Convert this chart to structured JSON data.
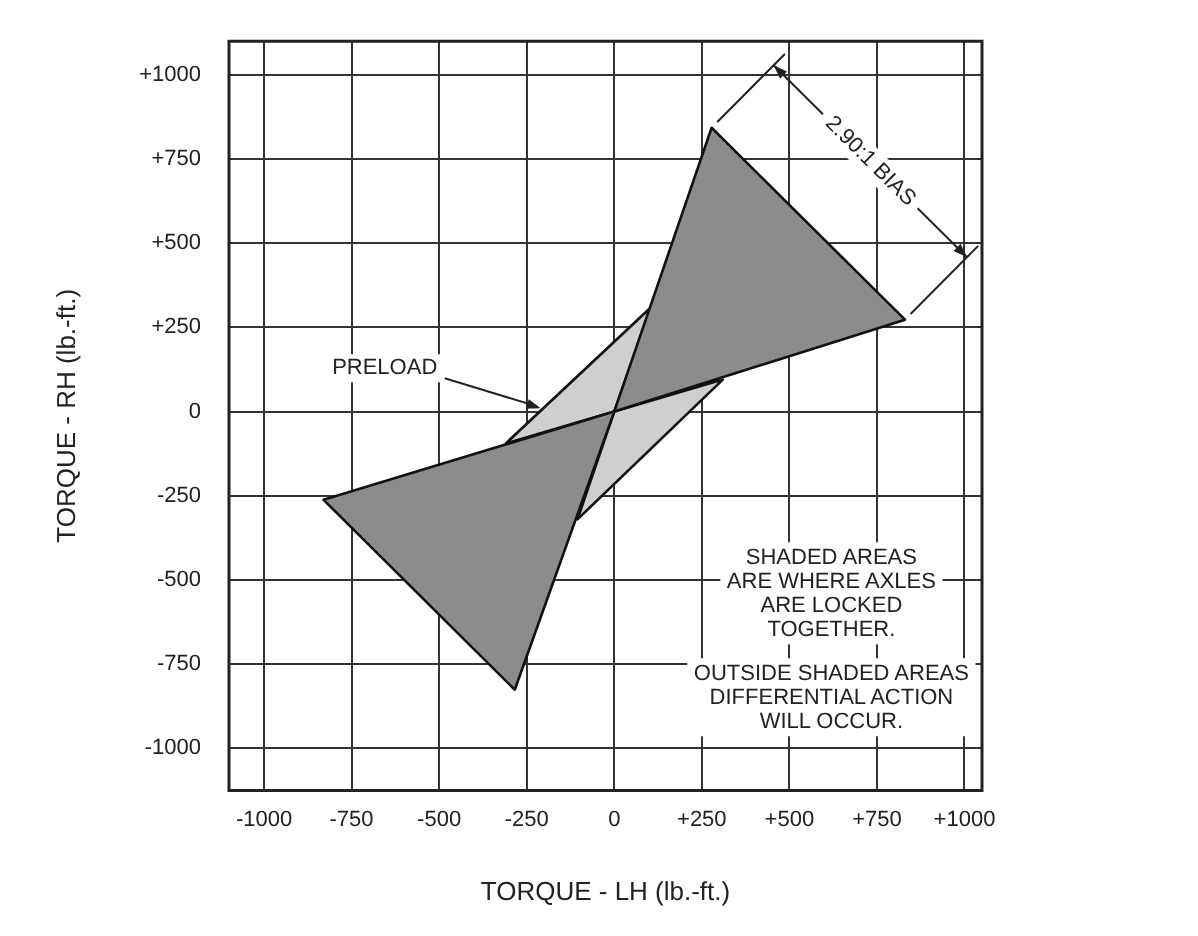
{
  "chart_data": {
    "type": "area",
    "xlabel": "TORQUE - LH (lb.-ft.)",
    "ylabel": "TORQUE - RH (lb.-ft.)",
    "series": [
      {
        "color": "#8c8c8c",
        "x": [
          0,
          278,
          830,
          0
        ],
        "values": [
          0,
          843,
          273,
          0
        ]
      },
      {
        "color": "#8c8c8c",
        "x": [
          0,
          -830,
          -284,
          0
        ],
        "values": [
          0,
          -262,
          -826,
          0
        ]
      },
      {
        "color": "#cfcfcf",
        "x": [
          0,
          -310,
          105,
          0
        ],
        "values": [
          0,
          -95,
          310,
          0
        ]
      },
      {
        "color": "#cfcfcf",
        "x": [
          0,
          -105,
          310,
          0
        ],
        "values": [
          0,
          -320,
          95,
          0
        ]
      }
    ],
    "xlim": [
      -1100,
      1050
    ],
    "ylim": [
      -1125,
      1100
    ],
    "xticks": [
      -1000,
      -750,
      -500,
      -250,
      0,
      {
        "value": 250,
        "label": "+250"
      },
      {
        "value": 500,
        "label": "+500"
      },
      {
        "value": 750,
        "label": "+750"
      },
      {
        "value": 1000,
        "label": "+1000"
      }
    ],
    "yticks": [
      -1000,
      -750,
      -500,
      -250,
      0,
      {
        "value": 250,
        "label": "+250"
      },
      {
        "value": 500,
        "label": "+500"
      },
      {
        "value": 750,
        "label": "+750"
      },
      {
        "value": 1000,
        "label": "+1000"
      }
    ],
    "annotations": [
      {
        "text": "PRELOAD",
        "x": -210,
        "y": 10
      },
      "2.90:1 BIAS",
      "SHADED AREAS\nARE WHERE AXLES\nARE LOCKED\nTOGETHER.",
      "OUTSIDE SHADED AREAS\nDIFFERENTIAL ACTION\nWILL OCCUR."
    ],
    "grid": true,
    "legend": false
  }
}
